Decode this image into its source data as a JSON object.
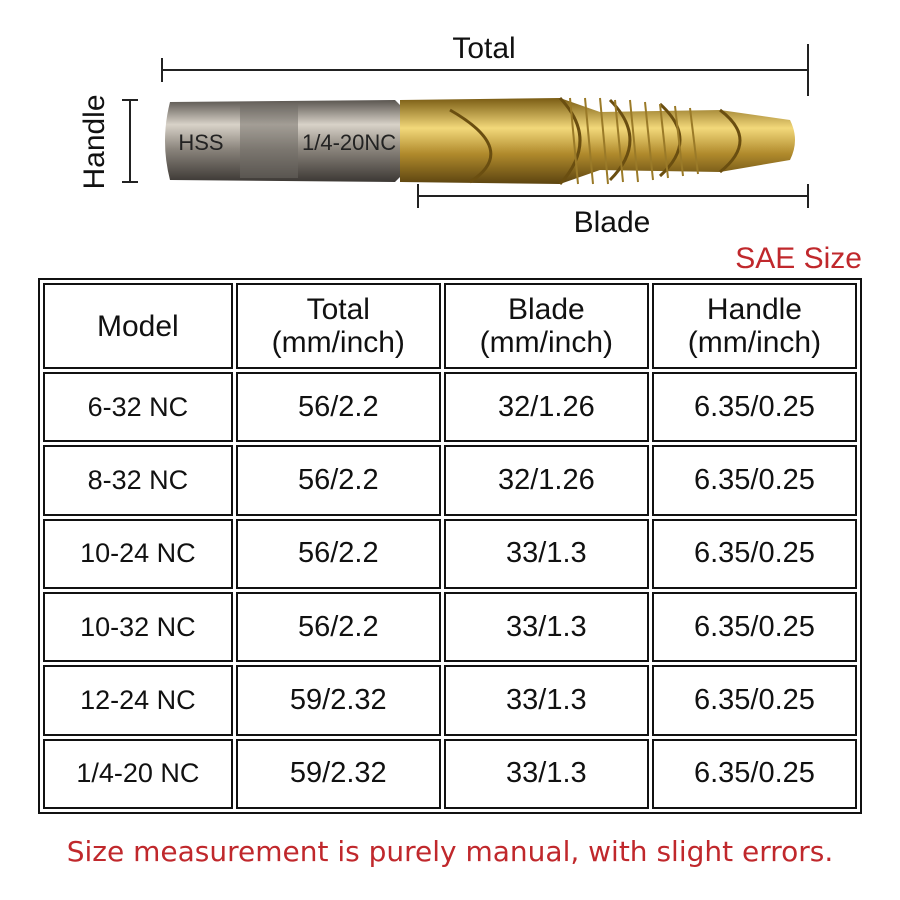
{
  "diagram": {
    "total_label": "Total",
    "blade_label": "Blade",
    "handle_label": "Handle",
    "shank_marking": "HSS",
    "size_marking": "1/4-20NC"
  },
  "table": {
    "caption": "SAE Size",
    "header": [
      [
        "Model"
      ],
      [
        "Total",
        "(mm/inch)"
      ],
      [
        "Blade",
        "(mm/inch)"
      ],
      [
        "Handle",
        "(mm/inch)"
      ]
    ],
    "rows": [
      [
        "6-32 NC",
        "56/2.2",
        "32/1.26",
        "6.35/0.25"
      ],
      [
        "8-32 NC",
        "56/2.2",
        "32/1.26",
        "6.35/0.25"
      ],
      [
        "10-24 NC",
        "56/2.2",
        "33/1.3",
        "6.35/0.25"
      ],
      [
        "10-32 NC",
        "56/2.2",
        "33/1.3",
        "6.35/0.25"
      ],
      [
        "12-24 NC",
        "59/2.32",
        "33/1.3",
        "6.35/0.25"
      ],
      [
        "1/4-20 NC",
        "59/2.32",
        "33/1.3",
        "6.35/0.25"
      ]
    ]
  },
  "footer": {
    "note": "Size measurement is purely manual, with slight errors."
  }
}
